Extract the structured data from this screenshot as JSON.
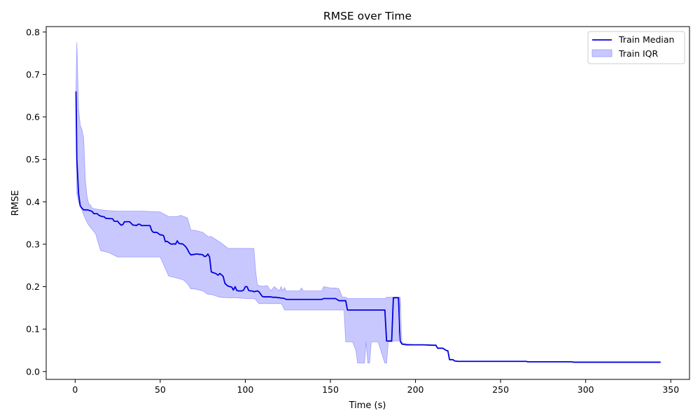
{
  "chart_data": {
    "type": "line",
    "title": "RMSE over Time",
    "xlabel": "Time (s)",
    "ylabel": "RMSE",
    "xlim": [
      -17,
      361
    ],
    "ylim": [
      -0.0185,
      0.8128
    ],
    "xticks": [
      0,
      50,
      100,
      150,
      200,
      250,
      300,
      350
    ],
    "yticks": [
      0.0,
      0.1,
      0.2,
      0.3,
      0.4,
      0.5,
      0.6,
      0.7,
      0.8
    ],
    "xtick_labels": [
      "0",
      "50",
      "100",
      "150",
      "200",
      "250",
      "300",
      "350"
    ],
    "ytick_labels": [
      "0.0",
      "0.1",
      "0.2",
      "0.3",
      "0.4",
      "0.5",
      "0.6",
      "0.7",
      "0.8"
    ],
    "grid": false,
    "legend_position": "top-right",
    "legend": [
      "Train Median",
      "Train IQR"
    ],
    "colors": {
      "median": "#0000dd",
      "iqr_fill": "#c8c8ff",
      "iqr_edge": "#9d9dff"
    },
    "series": [
      {
        "name": "Train Median",
        "kind": "line",
        "x": [
          0.5,
          1,
          2,
          3,
          4,
          5,
          7,
          9,
          10,
          11,
          13,
          14,
          16,
          17,
          18,
          22,
          23,
          25,
          26,
          27,
          28,
          29,
          30,
          32,
          34,
          35,
          36,
          37,
          38,
          39,
          40,
          41,
          43,
          44,
          45,
          46,
          48,
          49,
          50,
          51,
          52,
          53,
          54,
          55,
          56,
          57,
          58,
          59,
          60,
          61,
          62,
          63,
          64,
          65,
          66,
          67,
          68,
          70,
          71,
          72,
          73,
          74,
          75,
          76,
          77,
          78,
          79,
          80,
          81,
          82,
          83,
          84,
          85,
          86,
          87,
          88,
          89,
          90,
          91,
          92,
          93,
          94,
          95,
          96,
          97,
          98,
          99,
          100,
          101,
          102,
          103,
          104,
          105,
          106,
          107,
          108,
          110,
          111,
          112,
          113,
          114,
          115,
          116,
          117,
          118,
          119,
          120,
          121,
          122,
          123,
          124,
          125,
          130,
          135,
          140,
          145,
          146,
          150,
          153,
          155,
          158,
          159,
          160,
          165,
          170,
          175,
          180,
          182,
          183,
          186,
          187,
          188,
          189,
          190,
          191,
          192,
          193,
          195,
          200,
          205,
          210,
          212,
          213,
          216,
          218,
          219,
          220,
          221,
          222,
          223,
          225,
          230,
          240,
          250,
          260,
          265,
          266,
          280,
          290,
          292,
          293,
          300,
          320,
          340,
          344
        ],
        "y": [
          0.66,
          0.5,
          0.42,
          0.39,
          0.385,
          0.381,
          0.381,
          0.379,
          0.377,
          0.372,
          0.372,
          0.368,
          0.365,
          0.365,
          0.361,
          0.36,
          0.354,
          0.354,
          0.349,
          0.345,
          0.346,
          0.353,
          0.353,
          0.353,
          0.345,
          0.345,
          0.344,
          0.347,
          0.347,
          0.344,
          0.344,
          0.344,
          0.344,
          0.344,
          0.332,
          0.328,
          0.328,
          0.325,
          0.322,
          0.322,
          0.32,
          0.306,
          0.307,
          0.304,
          0.301,
          0.3,
          0.301,
          0.3,
          0.308,
          0.302,
          0.301,
          0.301,
          0.298,
          0.294,
          0.288,
          0.28,
          0.275,
          0.276,
          0.277,
          0.277,
          0.276,
          0.276,
          0.275,
          0.271,
          0.272,
          0.277,
          0.27,
          0.235,
          0.233,
          0.232,
          0.23,
          0.227,
          0.231,
          0.228,
          0.224,
          0.208,
          0.204,
          0.201,
          0.2,
          0.199,
          0.192,
          0.2,
          0.191,
          0.19,
          0.19,
          0.19,
          0.192,
          0.2,
          0.2,
          0.191,
          0.19,
          0.19,
          0.188,
          0.189,
          0.19,
          0.188,
          0.177,
          0.176,
          0.176,
          0.176,
          0.176,
          0.176,
          0.175,
          0.175,
          0.175,
          0.174,
          0.174,
          0.173,
          0.173,
          0.172,
          0.17,
          0.17,
          0.17,
          0.17,
          0.17,
          0.17,
          0.172,
          0.172,
          0.172,
          0.167,
          0.167,
          0.167,
          0.145,
          0.145,
          0.145,
          0.145,
          0.145,
          0.145,
          0.072,
          0.072,
          0.174,
          0.174,
          0.174,
          0.174,
          0.072,
          0.065,
          0.064,
          0.063,
          0.063,
          0.063,
          0.062,
          0.062,
          0.055,
          0.055,
          0.05,
          0.049,
          0.028,
          0.028,
          0.028,
          0.025,
          0.024,
          0.024,
          0.024,
          0.024,
          0.024,
          0.024,
          0.023,
          0.023,
          0.023,
          0.023,
          0.022,
          0.022,
          0.022,
          0.022,
          0.022
        ]
      },
      {
        "name": "Train IQR",
        "kind": "band",
        "x": [
          0.5,
          1,
          2,
          3,
          4,
          5,
          6,
          7,
          8,
          9,
          10,
          12,
          15,
          20,
          25,
          30,
          35,
          40,
          45,
          50,
          55,
          60,
          62,
          64,
          66,
          68,
          70,
          75,
          78,
          80,
          85,
          90,
          95,
          100,
          102,
          105,
          106,
          107,
          108,
          110,
          113,
          115,
          117,
          120,
          121,
          122,
          123,
          124,
          125,
          128,
          130,
          132,
          133,
          134,
          135,
          140,
          145,
          146,
          150,
          153,
          155,
          157,
          158,
          159,
          160,
          161,
          162,
          163,
          165,
          166,
          167,
          170,
          171,
          172,
          173,
          174,
          176,
          178,
          180,
          182,
          183,
          184,
          185,
          186,
          187,
          189,
          190,
          191,
          192,
          195,
          200,
          205,
          210,
          212,
          213,
          216,
          218,
          219,
          220,
          221,
          222,
          223,
          225,
          230,
          240,
          250,
          260,
          265,
          266,
          280,
          290,
          292,
          293,
          300,
          320,
          340,
          344
        ],
        "upper": [
          0.66,
          0.775,
          0.62,
          0.58,
          0.57,
          0.55,
          0.45,
          0.412,
          0.395,
          0.392,
          0.385,
          0.383,
          0.381,
          0.379,
          0.378,
          0.378,
          0.378,
          0.378,
          0.377,
          0.376,
          0.365,
          0.365,
          0.368,
          0.365,
          0.362,
          0.333,
          0.333,
          0.328,
          0.318,
          0.318,
          0.305,
          0.29,
          0.29,
          0.29,
          0.29,
          0.29,
          0.24,
          0.205,
          0.202,
          0.201,
          0.202,
          0.19,
          0.2,
          0.19,
          0.2,
          0.19,
          0.198,
          0.19,
          0.19,
          0.19,
          0.19,
          0.19,
          0.197,
          0.19,
          0.19,
          0.19,
          0.19,
          0.2,
          0.197,
          0.197,
          0.195,
          0.175,
          0.175,
          0.175,
          0.172,
          0.172,
          0.172,
          0.172,
          0.172,
          0.172,
          0.172,
          0.172,
          0.172,
          0.172,
          0.172,
          0.172,
          0.172,
          0.172,
          0.172,
          0.172,
          0.175,
          0.175,
          0.175,
          0.175,
          0.175,
          0.175,
          0.175,
          0.175,
          0.068,
          0.065,
          0.063,
          0.063,
          0.062,
          0.062,
          0.055,
          0.055,
          0.05,
          0.049,
          0.028,
          0.028,
          0.028,
          0.025,
          0.024,
          0.024,
          0.024,
          0.024,
          0.024,
          0.024,
          0.023,
          0.023,
          0.023,
          0.023,
          0.022,
          0.022,
          0.022,
          0.022,
          0.022
        ],
        "lower": [
          0.66,
          0.42,
          0.4,
          0.39,
          0.38,
          0.37,
          0.36,
          0.352,
          0.345,
          0.34,
          0.335,
          0.325,
          0.285,
          0.28,
          0.27,
          0.27,
          0.27,
          0.27,
          0.27,
          0.27,
          0.225,
          0.22,
          0.218,
          0.215,
          0.207,
          0.195,
          0.195,
          0.19,
          0.182,
          0.182,
          0.175,
          0.174,
          0.174,
          0.172,
          0.172,
          0.172,
          0.17,
          0.165,
          0.16,
          0.16,
          0.16,
          0.16,
          0.16,
          0.16,
          0.16,
          0.155,
          0.145,
          0.145,
          0.145,
          0.145,
          0.145,
          0.145,
          0.145,
          0.145,
          0.145,
          0.145,
          0.145,
          0.145,
          0.145,
          0.145,
          0.145,
          0.145,
          0.145,
          0.07,
          0.07,
          0.07,
          0.07,
          0.07,
          0.05,
          0.02,
          0.02,
          0.02,
          0.07,
          0.02,
          0.02,
          0.07,
          0.07,
          0.07,
          0.045,
          0.02,
          0.02,
          0.07,
          0.07,
          0.07,
          0.072,
          0.072,
          0.072,
          0.172,
          0.068,
          0.065,
          0.063,
          0.063,
          0.062,
          0.062,
          0.055,
          0.055,
          0.05,
          0.049,
          0.028,
          0.028,
          0.028,
          0.025,
          0.024,
          0.024,
          0.024,
          0.024,
          0.024,
          0.024,
          0.023,
          0.023,
          0.023,
          0.023,
          0.022,
          0.022,
          0.022,
          0.022,
          0.022
        ]
      }
    ]
  }
}
